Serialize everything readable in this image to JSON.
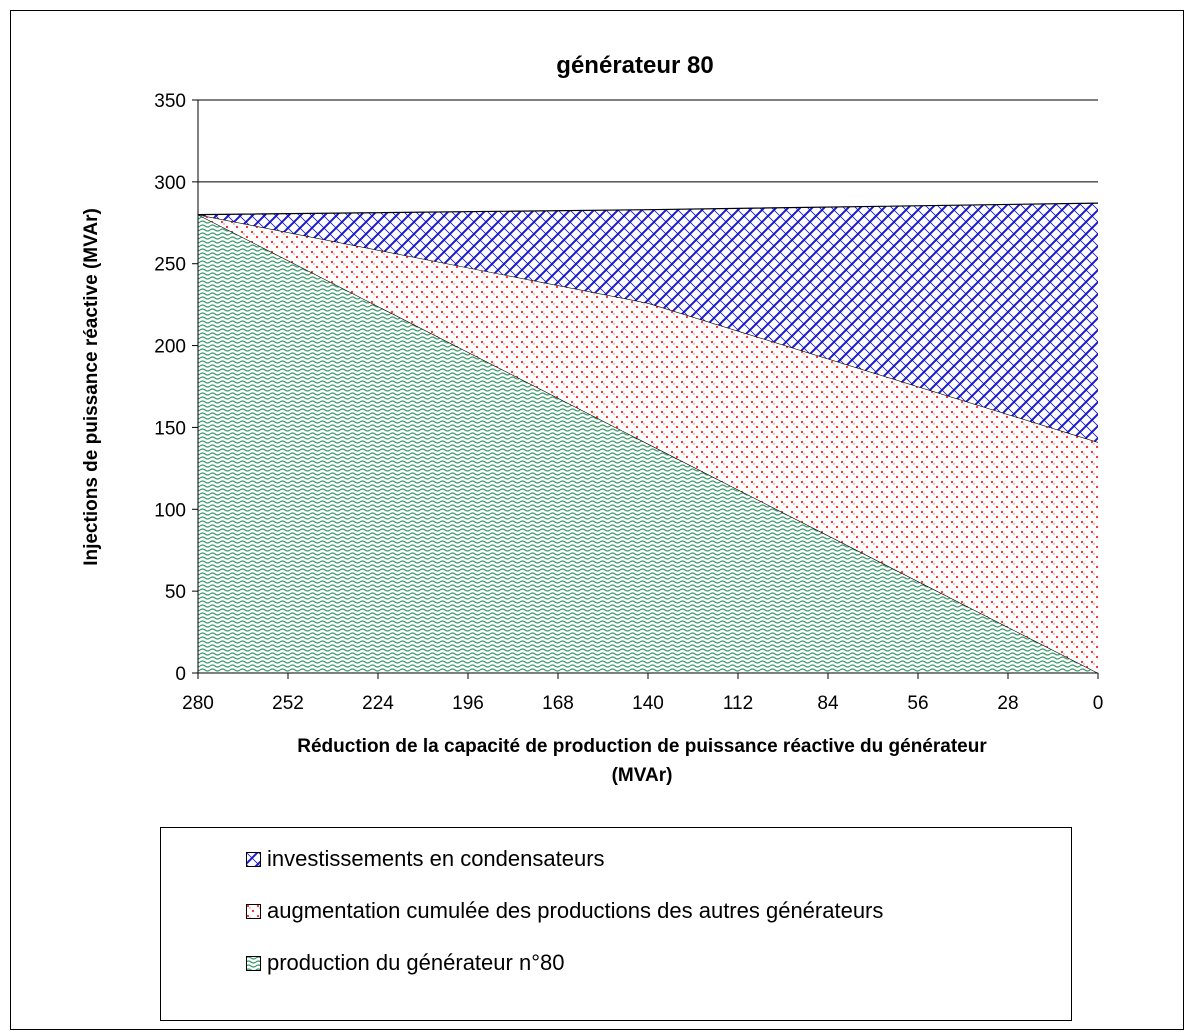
{
  "chart_data": {
    "type": "area",
    "stacked": true,
    "title": "générateur 80",
    "ylabel": "Injections de puissance réactive (MVAr)",
    "xlabel_line1": "Réduction de la capacité de production de puissance réactive du générateur",
    "xlabel_line2": "(MVAr)",
    "x": [
      280,
      140,
      0
    ],
    "x_ticks": [
      "280",
      "252",
      "224",
      "196",
      "168",
      "140",
      "112",
      "84",
      "56",
      "28",
      "0"
    ],
    "y_ticks": [
      "0",
      "50",
      "100",
      "150",
      "200",
      "250",
      "300",
      "350"
    ],
    "ylim": [
      0,
      350
    ],
    "xlim": [
      280,
      0
    ],
    "grid": "horizontal",
    "series": [
      {
        "name": "production du générateur n°80",
        "values": [
          280,
          140,
          0
        ],
        "color": "#3a9a6a"
      },
      {
        "name": "augmentation cumulée des productions des autres générateurs",
        "values": [
          0,
          86,
          141
        ],
        "color": "#ff2020"
      },
      {
        "name": "investissements en condensateurs",
        "values": [
          0,
          57,
          146
        ],
        "color": "#1a1acc"
      }
    ],
    "legend_position": "bottom"
  }
}
